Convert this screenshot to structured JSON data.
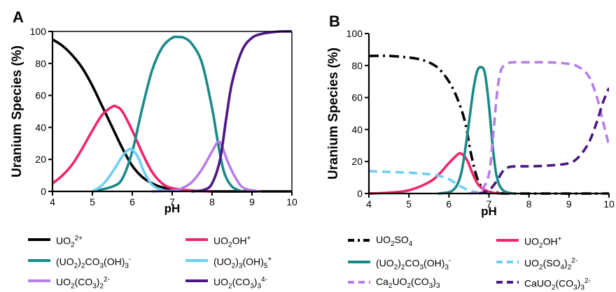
{
  "chart_data": [
    {
      "panel": "A",
      "type": "line",
      "xlabel": "pH",
      "ylabel": "Uranium Species (%)",
      "xlim": [
        4,
        10
      ],
      "ylim": [
        0,
        100
      ],
      "xticks": [
        "4",
        "5",
        "6",
        "7",
        "8",
        "9",
        "10"
      ],
      "yticks": [
        "0",
        "20",
        "40",
        "60",
        "80",
        "100"
      ],
      "legend": "below",
      "series": [
        {
          "name": "UO2 2+",
          "label_main": "UO",
          "label_sub": "2",
          "label_sup": "2+",
          "label_tail": "",
          "color": "#000000",
          "dash": "solid",
          "x": [
            4,
            4.25,
            4.5,
            4.75,
            5,
            5.25,
            5.5,
            5.75,
            6,
            6.25,
            6.5,
            6.75,
            7,
            7.5,
            8,
            9,
            10
          ],
          "y": [
            95,
            91,
            85,
            77,
            66,
            53,
            40,
            27,
            16,
            9,
            5,
            2.5,
            1.2,
            0.4,
            0,
            0,
            0
          ]
        },
        {
          "name": "UO2OH+",
          "label_main": "UO",
          "label_sub": "2",
          "label_tail": "OH",
          "label_sup": "+",
          "color": "#f0256d",
          "dash": "solid",
          "x": [
            4,
            4.25,
            4.5,
            4.75,
            5,
            5.25,
            5.5,
            5.6,
            5.75,
            6,
            6.25,
            6.5,
            6.75,
            7,
            7.5,
            8
          ],
          "y": [
            5,
            10,
            17,
            27,
            38,
            48,
            53,
            53,
            50,
            38,
            24,
            12,
            5,
            2,
            0.5,
            0
          ]
        },
        {
          "name": "(UO2)2CO3(OH)3-",
          "label_html": "(UO<sub>2</sub>)<sub>2</sub>CO<sub>3</sub>(OH)<sub>3</sub><sup>-</sup>",
          "color": "#1a8a88",
          "dash": "solid",
          "x": [
            5,
            5.5,
            5.75,
            6,
            6.25,
            6.5,
            6.75,
            7,
            7.15,
            7.3,
            7.5,
            7.75,
            8,
            8.15,
            8.3,
            8.5,
            8.75
          ],
          "y": [
            0,
            3,
            8,
            25,
            52,
            76,
            90,
            96,
            96.5,
            96,
            92,
            80,
            52,
            30,
            12,
            3,
            0
          ]
        },
        {
          "name": "(UO2)3(OH)5+",
          "label_html": "(UO<sub>2</sub>)<sub>3</sub>(OH)<sub>5</sub><sup>+</sup>",
          "color": "#6ecff2",
          "dash": "solid",
          "x": [
            5,
            5.25,
            5.5,
            5.75,
            5.9,
            6,
            6.15,
            6.3,
            6.5,
            6.75,
            7
          ],
          "y": [
            0,
            4,
            12,
            22,
            26,
            26,
            21,
            12,
            4,
            1,
            0
          ]
        },
        {
          "name": "UO2(CO3)2 2-",
          "label_html": "UO<sub>2</sub>(CO<sub>3</sub>)<sub>2</sub><sup>2-</sup>",
          "color": "#b87de8",
          "dash": "solid",
          "x": [
            6.5,
            7,
            7.25,
            7.5,
            7.75,
            8,
            8.15,
            8.25,
            8.4,
            8.6,
            8.8,
            9.2
          ],
          "y": [
            0,
            0.5,
            2,
            6,
            14,
            25,
            31,
            28,
            18,
            8,
            2,
            0
          ]
        },
        {
          "name": "UO2(CO3)3 4-",
          "label_html": "UO<sub>2</sub>(CO<sub>3</sub>)<sub>3</sub><sup>4-</sup>",
          "color": "#4b1782",
          "dash": "solid",
          "x": [
            7.5,
            7.8,
            8,
            8.2,
            8.35,
            8.5,
            8.75,
            9,
            9.25,
            9.5,
            9.75,
            10
          ],
          "y": [
            0,
            1,
            5,
            20,
            45,
            68,
            88,
            96,
            98.5,
            99.5,
            100,
            100
          ]
        }
      ]
    },
    {
      "panel": "B",
      "type": "line",
      "xlabel": "pH",
      "ylabel": "Uranium Species (%)",
      "xlim": [
        4,
        10
      ],
      "ylim": [
        0,
        100
      ],
      "xticks": [
        "4",
        "5",
        "6",
        "7",
        "8",
        "9",
        "10"
      ],
      "yticks": [
        "0",
        "20",
        "40",
        "60",
        "80",
        "100"
      ],
      "legend": "below",
      "series": [
        {
          "name": "UO2SO4",
          "label_html": "UO<sub>2</sub>SO<sub>4</sub>",
          "color": "#000000",
          "dash": "dashdot",
          "x": [
            4,
            4.5,
            5,
            5.25,
            5.5,
            5.75,
            6,
            6.2,
            6.4,
            6.55,
            6.7,
            6.85,
            7,
            7.25,
            7.5,
            10
          ],
          "y": [
            86,
            86,
            85,
            84,
            82,
            78,
            70,
            60,
            45,
            25,
            10,
            3,
            1,
            0.5,
            0,
            0
          ]
        },
        {
          "name": "UO2OH+",
          "label_html": "UO<sub>2</sub>OH<sup>+</sup>",
          "color": "#f0256d",
          "dash": "solid",
          "x": [
            4,
            4.5,
            5,
            5.5,
            5.75,
            6,
            6.2,
            6.3,
            6.45,
            6.6,
            6.75,
            7,
            7.25
          ],
          "y": [
            0,
            0.5,
            2,
            7,
            12,
            19,
            24,
            25,
            21,
            12,
            5,
            1,
            0
          ]
        },
        {
          "name": "(UO2)2CO3(OH)3-",
          "label_html": "(UO<sub>2</sub>)<sub>2</sub>CO<sub>3</sub>(OH)<sub>3</sub><sup>-</sup>",
          "color": "#1a8a88",
          "dash": "solid",
          "x": [
            5.75,
            6.1,
            6.3,
            6.45,
            6.6,
            6.7,
            6.8,
            6.9,
            7,
            7.1,
            7.2,
            7.35,
            7.6
          ],
          "y": [
            0,
            2,
            12,
            35,
            63,
            76,
            79,
            75,
            55,
            28,
            10,
            2,
            0
          ]
        },
        {
          "name": "UO2(SO4)2 2-",
          "label_html": "UO<sub>2</sub>(SO<sub>4</sub>)<sub>2</sub><sup>2-</sup>",
          "color": "#6ecff2",
          "dash": "dashed",
          "x": [
            4,
            4.5,
            5,
            5.5,
            5.75,
            6,
            6.25,
            6.5,
            6.75,
            7
          ],
          "y": [
            14,
            13.5,
            13,
            12,
            11,
            9,
            5,
            2,
            0.5,
            0
          ]
        },
        {
          "name": "Ca2UO2(CO3)3",
          "label_html": "Ca<sub>2</sub>UO<sub>2</sub>(CO<sub>3</sub>)<sub>3</sub>",
          "color": "#b87de8",
          "dash": "dashed",
          "x": [
            6.5,
            6.8,
            7,
            7.1,
            7.2,
            7.3,
            7.45,
            7.6,
            8,
            8.5,
            9,
            9.25,
            9.5,
            9.7,
            9.85,
            10
          ],
          "y": [
            0,
            2,
            12,
            35,
            62,
            77,
            81,
            82,
            82,
            82,
            81,
            79,
            73,
            60,
            45,
            30
          ]
        },
        {
          "name": "CaUO2(CO3)3 2-",
          "label_html": "CaUO<sub>2</sub>(CO<sub>3</sub>)<sub>3</sub><sup>2-</sup>",
          "color": "#4b1782",
          "dash": "dashed",
          "x": [
            6.75,
            7,
            7.2,
            7.35,
            7.5,
            7.75,
            8,
            8.5,
            9,
            9.25,
            9.5,
            9.7,
            9.85,
            10
          ],
          "y": [
            0,
            2,
            8,
            14,
            16.5,
            17,
            17,
            17.5,
            19,
            23,
            32,
            45,
            57,
            66
          ]
        }
      ]
    }
  ]
}
